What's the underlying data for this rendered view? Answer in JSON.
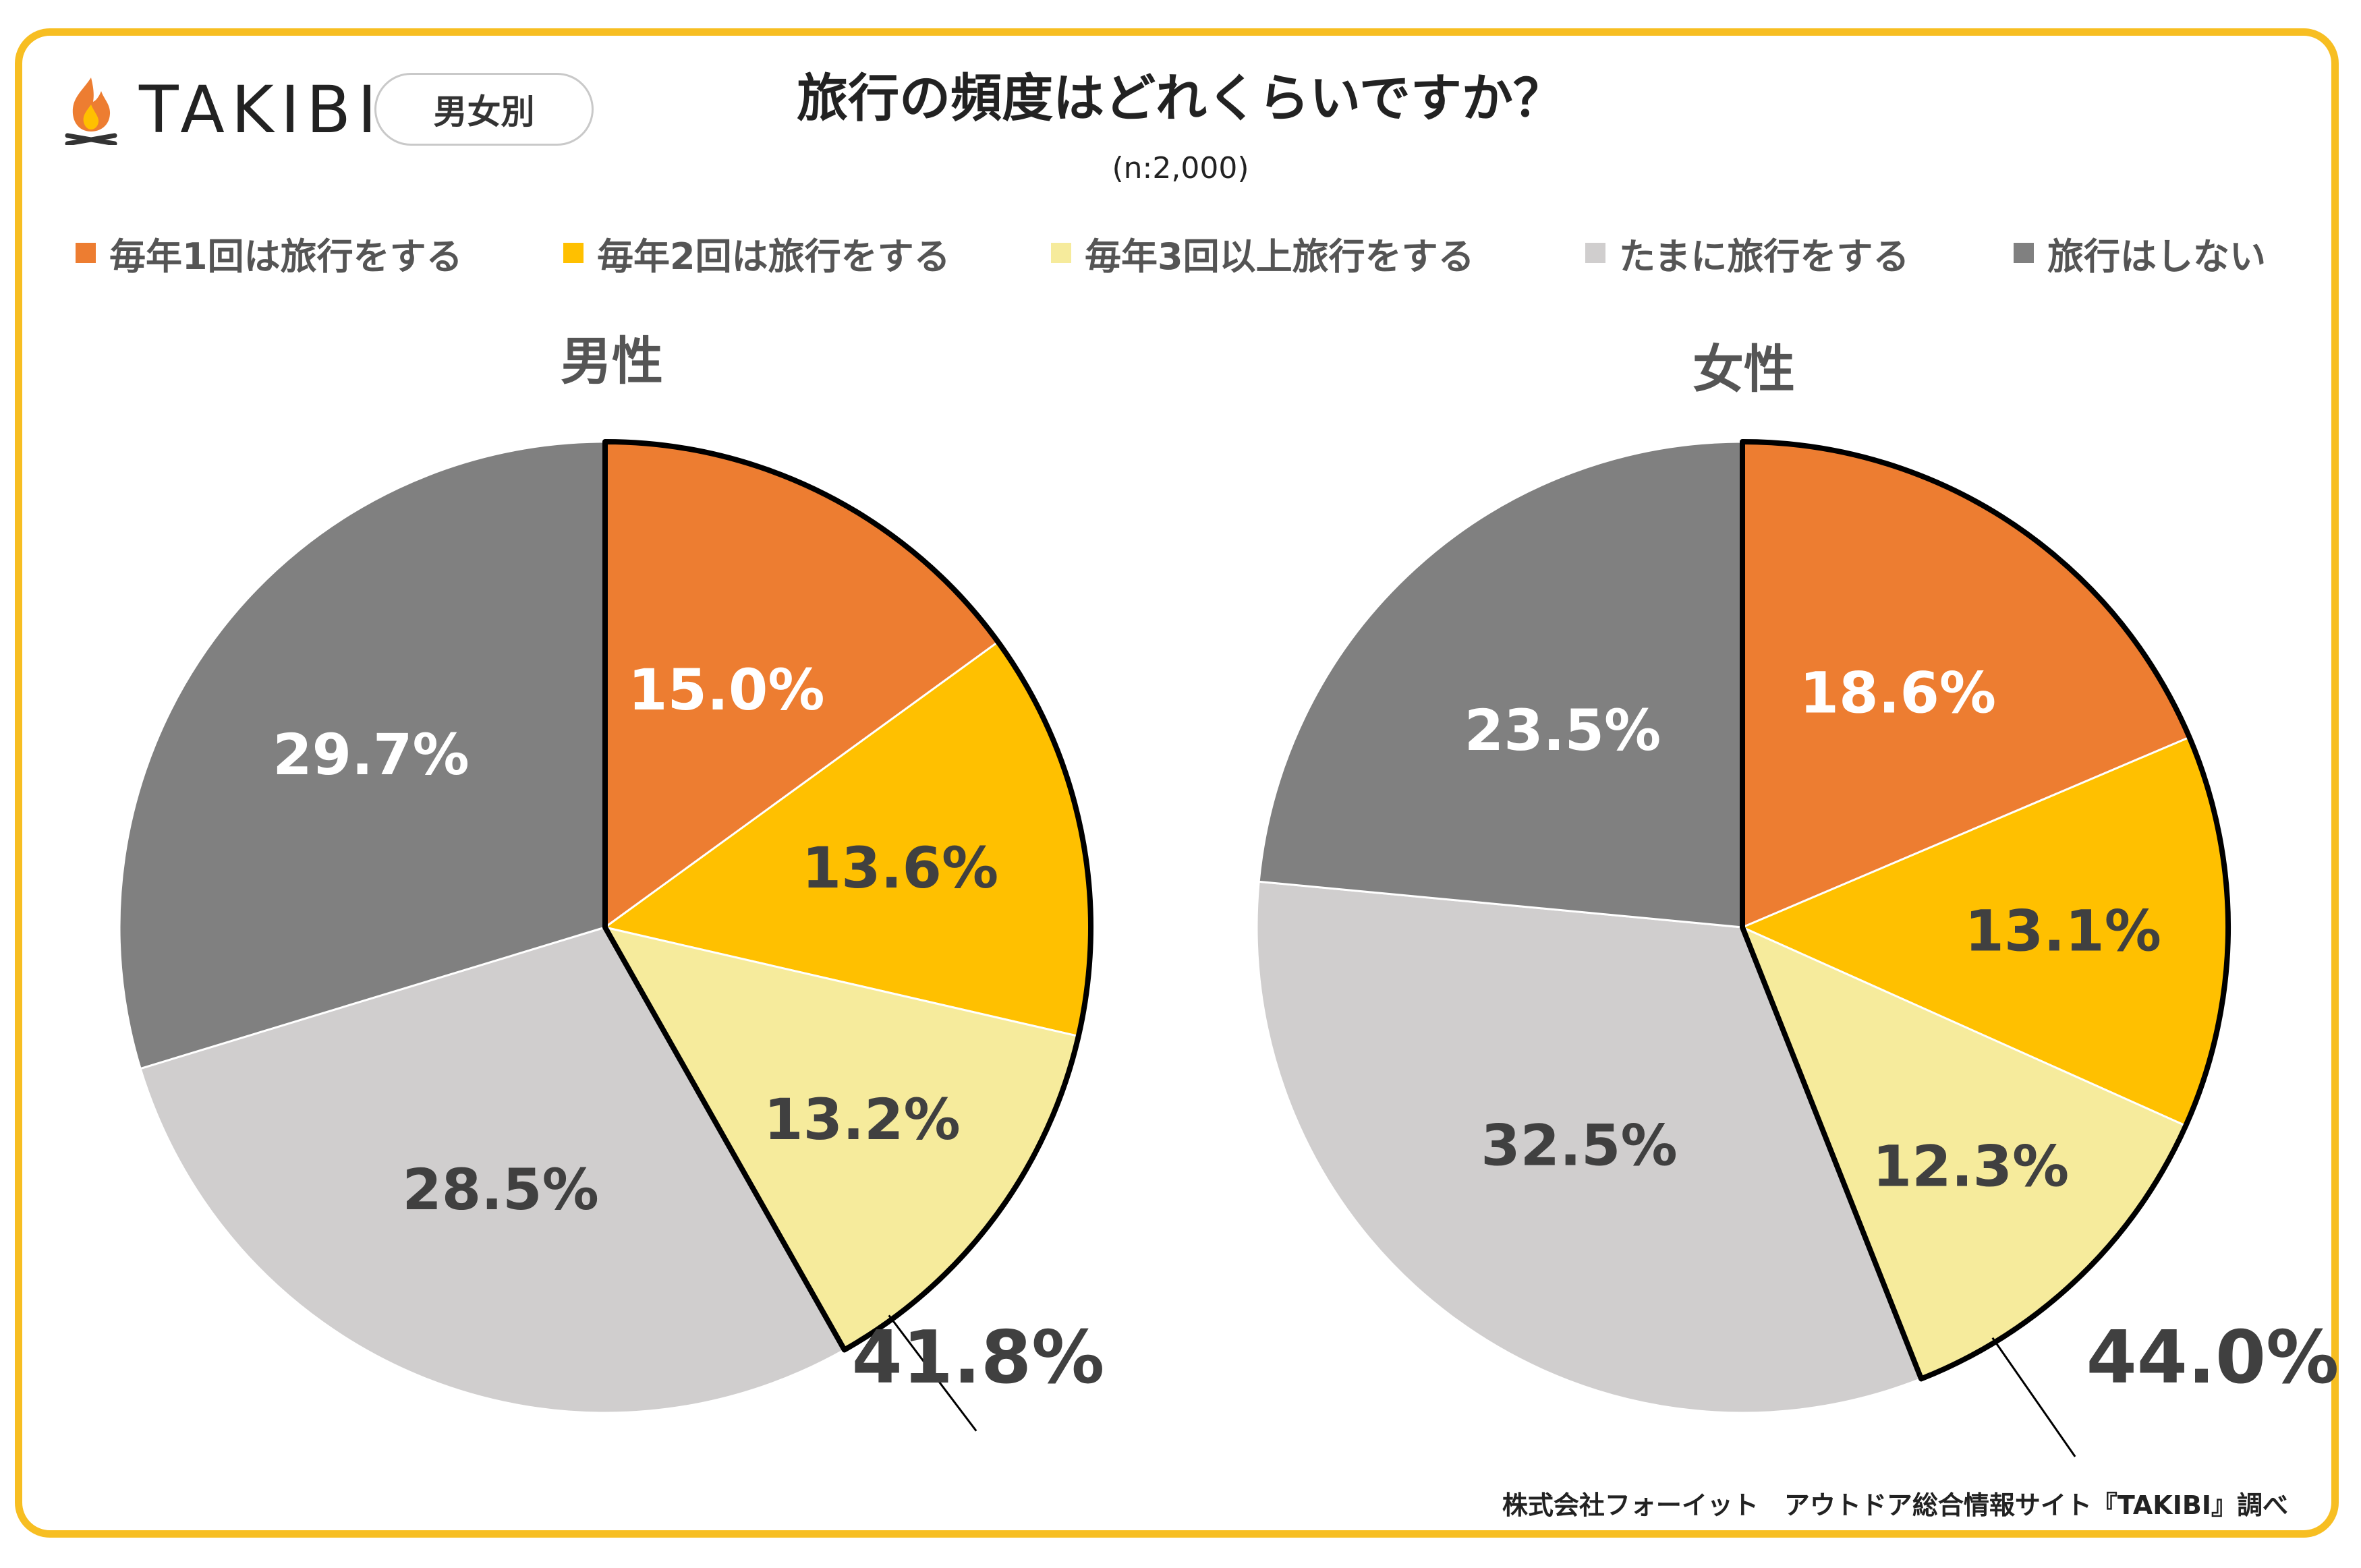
{
  "brand": {
    "name": "TAKIBI",
    "logo_icon": "campfire-icon"
  },
  "filter_pill": "男女別",
  "title": "旅行の頻度はどれくらいですか？",
  "subtitle": "(n:2,000)",
  "footer": "株式会社フォーイット　アウトドア総合情報サイト『TAKIBI』調べ",
  "colors": {
    "frame": "#F7BE22",
    "s1": "#ED7D31",
    "s2": "#FFC000",
    "s3": "#F6EB9C",
    "s4": "#D0CECE",
    "s5": "#808080"
  },
  "chart_data": [
    {
      "type": "pie",
      "title": "男性",
      "categories": [
        "毎年1回は旅行をする",
        "毎年2回は旅行をする",
        "毎年3回以上旅行をする",
        "たまに旅行をする",
        "旅行はしない"
      ],
      "values": [
        15.0,
        13.6,
        13.2,
        28.5,
        29.7
      ],
      "labels": [
        "15.0%",
        "13.6%",
        "13.2%",
        "28.5%",
        "29.7%"
      ],
      "highlight": {
        "categories": [
          "毎年1回は旅行をする",
          "毎年2回は旅行をする",
          "毎年3回以上旅行をする"
        ],
        "total_label": "41.8%"
      },
      "legend": "top"
    },
    {
      "type": "pie",
      "title": "女性",
      "categories": [
        "毎年1回は旅行をする",
        "毎年2回は旅行をする",
        "毎年3回以上旅行をする",
        "たまに旅行をする",
        "旅行はしない"
      ],
      "values": [
        18.6,
        13.1,
        12.3,
        32.5,
        23.5
      ],
      "labels": [
        "18.6%",
        "13.1%",
        "12.3%",
        "32.5%",
        "23.5%"
      ],
      "highlight": {
        "categories": [
          "毎年1回は旅行をする",
          "毎年2回は旅行をする",
          "毎年3回以上旅行をする"
        ],
        "total_label": "44.0%"
      },
      "legend": "top"
    }
  ]
}
